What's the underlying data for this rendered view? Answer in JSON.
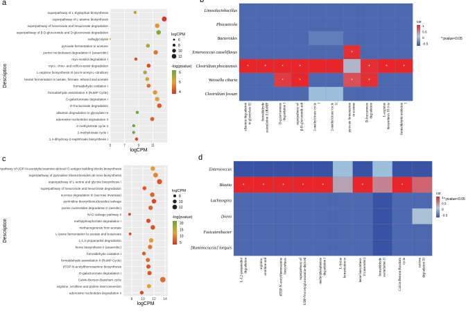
{
  "chart_data": [
    {
      "panel": "a",
      "type": "scatter",
      "xlabel": "logCPM",
      "ylabel": "Description",
      "xlim": [
        5,
        13
      ],
      "xticks": [
        5,
        7,
        9,
        11
      ],
      "legend_size_title": "logCPM",
      "legend_size_values": [
        "6",
        "8",
        "10",
        "12"
      ],
      "legend_color_title": "-log(pvalue)",
      "legend_color_values": [
        "6",
        "5",
        "4"
      ],
      "color_range": [
        3.5,
        6.5
      ],
      "categories": [
        "superpathway of L-tryptophan biosynthesis",
        "superpathway of L-alanine biosynthesis",
        "superpathway of hexuronide and hexuronate degradation",
        "superpathway of &beta;-D-glucuronide and D-glucuronate degradation",
        "sulfoglycolysis",
        "pyruvate fermentation to acetone",
        "purine nucleobases degradation II (anaerobic)",
        "myo-inositol degradation I",
        "myo-, chiro- and scillo-inositol degradation",
        "L-arginine biosynthesis III (via N-acetyl-L-citrulline)",
        "hexitol fermentation to lactate, formate, ethanol and acetate",
        "formaldehyde oxidation I",
        "formaldehyde assimilation II (RuMP Cycle)",
        "D-galacturonate degradation I",
        "D-fructuronate degradation",
        "allantoin degradation to glyoxylate III",
        "adenosine nucleotides degradation II",
        "2-methylcitrate cycle II",
        "2-methylcitrate cycle I",
        "1,4-dihydroxy-2-naphthoate biosynthesis I"
      ],
      "x": [
        8.5,
        12.6,
        11.6,
        11.8,
        5.0,
        10.3,
        11.4,
        8.6,
        10.4,
        9.9,
        10.2,
        10.4,
        11.3,
        11.6,
        11.9,
        8.8,
        10.9,
        8.3,
        8.3,
        8.7
      ],
      "color_values": [
        5.5,
        3.6,
        4.8,
        6.2,
        4.9,
        5.7,
        4.4,
        4.0,
        3.9,
        5.6,
        5.3,
        4.3,
        4.8,
        5.1,
        4.1,
        6.3,
        4.2,
        6.5,
        6.4,
        3.8
      ]
    },
    {
      "panel": "b",
      "type": "heatmap",
      "rows": [
        "Limosilactobacillus",
        "Phocaeicola",
        "Bacteroides",
        "Enterococcus casseliflavus",
        "Clostridium phocaeensis",
        "Weissella cibaria",
        "Clostridium fessum"
      ],
      "columns": [
        "allantoin degradation to glyoxylate III",
        "formaldehyde assimilation II (RuMP Cycle)",
        "D-galacturonate degradation I",
        "superpathway of &beta;-D-glucuronide and D-glucuronate degradation",
        "2-methylcitrate cycle I",
        "2-methylcitrate cycle II",
        "pyruvate fermentation to acetone",
        "D-fructuronate degradation",
        "L-arginine biosynthesis III (via N-acetyl-L-citrulline)",
        "formaldehyde oxidation I"
      ],
      "values": [
        [
          -0.45,
          -0.45,
          -0.45,
          -0.45,
          -0.45,
          -0.45,
          -0.45,
          -0.45,
          -0.45,
          -0.45
        ],
        [
          -0.45,
          -0.45,
          -0.45,
          -0.45,
          -0.45,
          -0.45,
          -0.45,
          -0.45,
          -0.45,
          -0.45
        ],
        [
          -0.45,
          -0.45,
          -0.45,
          -0.45,
          -0.35,
          -0.35,
          -0.45,
          -0.45,
          -0.45,
          -0.45
        ],
        [
          -0.45,
          -0.45,
          -0.45,
          -0.45,
          -0.45,
          -0.45,
          0.75,
          -0.45,
          -0.45,
          -0.45
        ],
        [
          0.8,
          0.8,
          0.8,
          0.8,
          0.8,
          0.8,
          0.1,
          0.75,
          0.8,
          0.8
        ],
        [
          -0.45,
          -0.45,
          0.7,
          0.8,
          -0.45,
          -0.45,
          0.6,
          0.75,
          -0.45,
          -0.45
        ],
        [
          -0.45,
          -0.45,
          -0.45,
          -0.45,
          -0.05,
          -0.05,
          -0.45,
          -0.45,
          -0.45,
          -0.45
        ]
      ],
      "significant": [
        [
          0,
          0,
          0,
          0,
          0,
          0,
          0,
          0,
          0,
          0
        ],
        [
          0,
          0,
          0,
          0,
          0,
          0,
          0,
          0,
          0,
          0
        ],
        [
          0,
          0,
          0,
          0,
          0,
          0,
          0,
          0,
          0,
          0
        ],
        [
          0,
          0,
          0,
          0,
          0,
          0,
          1,
          0,
          0,
          0
        ],
        [
          1,
          1,
          1,
          1,
          0,
          0,
          0,
          1,
          1,
          1
        ],
        [
          0,
          0,
          1,
          1,
          0,
          0,
          1,
          1,
          0,
          0
        ],
        [
          0,
          0,
          0,
          0,
          0,
          0,
          0,
          0,
          0,
          0
        ]
      ],
      "legend_title": "cor",
      "legend_values": [
        "1",
        "0.5",
        "0",
        "-0.5"
      ],
      "note": "*:pvalue<0.05"
    },
    {
      "panel": "c",
      "type": "scatter",
      "xlabel": "logCPM",
      "ylabel": "Description",
      "xlim": [
        6.5,
        14.5
      ],
      "xticks": [
        8,
        10,
        12,
        14
      ],
      "legend_size_title": "logCPM",
      "legend_size_values": [
        "8",
        "10",
        "12"
      ],
      "legend_color_title": "-log(pvalue)",
      "legend_color_values": [
        "20",
        "15",
        "10",
        "5"
      ],
      "color_range": [
        3,
        22
      ],
      "categories": [
        "superpathway of UDP-N-acetylglucosamine-derived O-antigen building blocks biosynthesis",
        "superpathway of pyrimidine ribonucleosides de novo biosynthesis",
        "superpathway of L-serine and glycine biosynthesis I",
        "superpathway of hexuronide and hexuronate degradation",
        "sucrose degradation III (sucrose invertase)",
        "pyrimidine deoxyribonucleosides salvage",
        "purine nucleotides degradation II (aerobic)",
        "NAD salvage pathway II",
        "methylphosphonate degradation I",
        "methanogenesis from acetate",
        "L-lysine fermentation to acetate and butanoate",
        "L-1,2-propanediol degradation",
        "heme biosynthesis II (anaerobic)",
        "formaldehyde oxidation I",
        "formaldehyde assimilation II (RuMP Cycle)",
        "dTDP-N-acetylthomosamine biosynthesis",
        "D-galacturonate degradation I",
        "Calvin-Benson-Bassham cycle",
        "arginine, ornithine and proline interconversion",
        "adenosine nucleotides degradation II"
      ],
      "x": [
        11.8,
        12.3,
        13.0,
        10.3,
        11.7,
        12.0,
        11.4,
        7.6,
        11.0,
        11.8,
        7.7,
        11.5,
        11.3,
        10.2,
        10.9,
        11.0,
        11.2,
        13.6,
        11.1,
        9.8
      ],
      "color_values": [
        12,
        10,
        6,
        6,
        7,
        5,
        7,
        5,
        5,
        6,
        5,
        12,
        9,
        7,
        8,
        6,
        6,
        8,
        13,
        5
      ]
    },
    {
      "panel": "d",
      "type": "heatmap",
      "rows": [
        "Enterococcus",
        "Blautia",
        "Lachnospira",
        "Dorea",
        "Fusicatenibacter",
        "[Ruminococcus] torques"
      ],
      "columns": [
        "L-1,2-propanediol degradation",
        "arginine, ornithine and proline interconversion",
        "dTDP-N-acetylthomosamine biosynthesis",
        "superpathway of UDP-N-acetylglucosamine-derived O-antigen building blocks biosynthesis",
        "methylphosphonate degradation I",
        "L-lysine fermentation to acetate and butanoate",
        "heme biosynthesis II (anaerobic)",
        "formaldehyde assimilation II (RuMP Cycle)",
        "Calvin-Benson-Bassham cycle",
        "sucrose degradation III (sucrose invertase)"
      ],
      "values": [
        [
          -0.6,
          -0.6,
          -0.6,
          -0.6,
          -0.6,
          -0.05,
          -0.6,
          -0.05,
          -0.6,
          -0.6
        ],
        [
          0.9,
          0.9,
          0.9,
          0.9,
          0.9,
          0.2,
          0.9,
          0.35,
          0.9,
          0.5
        ],
        [
          -0.45,
          -0.45,
          -0.45,
          -0.45,
          -0.45,
          -0.45,
          -0.45,
          -0.55,
          -0.45,
          -0.45
        ],
        [
          -0.45,
          -0.45,
          -0.45,
          -0.45,
          -0.45,
          -0.45,
          -0.45,
          -0.55,
          -0.45,
          0.05
        ],
        [
          -0.45,
          -0.45,
          -0.45,
          -0.45,
          -0.45,
          -0.45,
          -0.45,
          -0.55,
          -0.45,
          -0.45
        ],
        [
          -0.45,
          -0.45,
          -0.45,
          -0.45,
          -0.45,
          -0.45,
          -0.45,
          -0.55,
          -0.45,
          -0.45
        ]
      ],
      "significant": [
        [
          0,
          0,
          0,
          0,
          0,
          0,
          0,
          0,
          0,
          0
        ],
        [
          1,
          1,
          1,
          1,
          1,
          0,
          1,
          0,
          1,
          0
        ],
        [
          0,
          0,
          0,
          0,
          0,
          0,
          0,
          0,
          0,
          0
        ],
        [
          0,
          0,
          0,
          0,
          0,
          0,
          0,
          0,
          0,
          0
        ],
        [
          0,
          0,
          0,
          0,
          0,
          0,
          0,
          0,
          0,
          0
        ],
        [
          0,
          0,
          0,
          0,
          0,
          0,
          0,
          0,
          0,
          0
        ]
      ],
      "legend_title": "cor",
      "legend_values": [
        "1",
        "0.5",
        "0",
        "-0.5"
      ],
      "note": "*:pvalue<0.05"
    }
  ],
  "panel_labels": [
    "a",
    "b",
    "c",
    "d"
  ],
  "colors": {
    "panel_bg": "#ebebeb",
    "grid": "#ffffff",
    "dot_low": "#d7301f",
    "dot_mid": "#e7a23a",
    "dot_high": "#6aa83b",
    "heat_neg": "#3853a4",
    "heat_mid": "#a6cbe0",
    "heat_pos": "#e8262a"
  }
}
